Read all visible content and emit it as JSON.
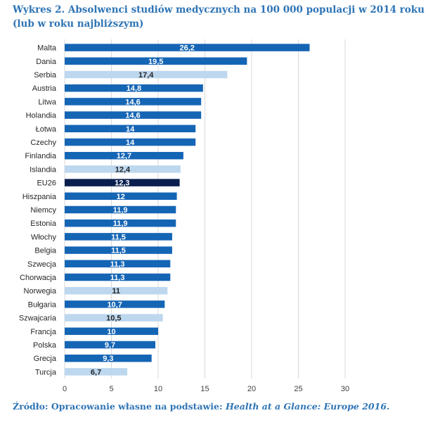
{
  "title": "Wykres 2. Absolwenci studiów medycznych na 100 000 populacji w 2014 roku (lub w roku najbliższym)",
  "source": {
    "prefix": "Źródło: Opracowanie własne na podstawie: ",
    "italic": "Health at a Glance: Europe 2016",
    "suffix": "."
  },
  "colors": {
    "eu_member": "#1565b5",
    "non_eu": "#bdd7ee",
    "eu_average": "#0a1f4e",
    "grid": "#d9d9d9"
  },
  "chart_data": {
    "type": "bar",
    "orientation": "horizontal",
    "title": "",
    "xlabel": "",
    "ylabel": "",
    "xlim": [
      0,
      30
    ],
    "xticks": [
      0,
      5,
      10,
      15,
      20,
      25,
      30
    ],
    "grid": true,
    "categories": [
      "Malta",
      "Dania",
      "Serbia",
      "Austria",
      "Litwa",
      "Holandia",
      "Łotwa",
      "Czechy",
      "Finlandia",
      "Islandia",
      "EU26",
      "Hiszpania",
      "Niemcy",
      "Estonia",
      "Włochy",
      "Belgia",
      "Szwecja",
      "Chorwacja",
      "Norwegia",
      "Bułgaria",
      "Szwajcaria",
      "Francja",
      "Polska",
      "Grecja",
      "Turcja"
    ],
    "values": [
      26.2,
      19.5,
      17.4,
      14.8,
      14.6,
      14.6,
      14,
      14,
      12.7,
      12.4,
      12.3,
      12,
      11.9,
      11.9,
      11.5,
      11.5,
      11.3,
      11.3,
      11,
      10.7,
      10.5,
      10,
      9.7,
      9.3,
      6.7
    ],
    "labels": [
      "26,2",
      "19,5",
      "17,4",
      "14,8",
      "14,6",
      "14,6",
      "14",
      "14",
      "12,7",
      "12,4",
      "12,3",
      "12",
      "11,9",
      "11,9",
      "11,5",
      "11,5",
      "11,3",
      "11,3",
      "11",
      "10,7",
      "10,5",
      "10",
      "9,7",
      "9,3",
      "6,7"
    ],
    "group": [
      "eu",
      "eu",
      "non",
      "eu",
      "eu",
      "eu",
      "eu",
      "eu",
      "eu",
      "non",
      "avg",
      "eu",
      "eu",
      "eu",
      "eu",
      "eu",
      "eu",
      "eu",
      "non",
      "eu",
      "non",
      "eu",
      "eu",
      "eu",
      "non"
    ]
  }
}
